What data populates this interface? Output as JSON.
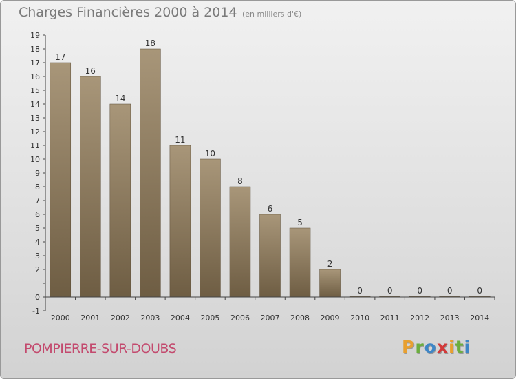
{
  "header": {
    "title": "Charges Financières 2000 à 2014",
    "subtitle": "(en milliers d'€)"
  },
  "footer": {
    "commune": "POMPIERRE-SUR-DOUBS",
    "logo_letters": [
      {
        "ch": "P",
        "color": "#e8a030"
      },
      {
        "ch": "r",
        "color": "#6cae3e"
      },
      {
        "ch": "o",
        "color": "#3e86c6"
      },
      {
        "ch": "x",
        "color": "#d23a3a"
      },
      {
        "ch": "i",
        "color": "#e8a030"
      },
      {
        "ch": "t",
        "color": "#6cae3e"
      },
      {
        "ch": "i",
        "color": "#3e86c6"
      }
    ]
  },
  "chart_data": {
    "type": "bar",
    "title": "Charges Financières 2000 à 2014",
    "subtitle": "(en milliers d'€)",
    "categories": [
      "2000",
      "2001",
      "2002",
      "2003",
      "2004",
      "2005",
      "2006",
      "2007",
      "2008",
      "2009",
      "2010",
      "2011",
      "2012",
      "2013",
      "2014"
    ],
    "values": [
      17,
      16,
      14,
      18,
      11,
      10,
      8,
      6,
      5,
      2,
      0,
      0,
      0,
      0,
      0
    ],
    "ylim": [
      -1,
      19
    ],
    "yticks": [
      "-1",
      "0",
      "",
      "2",
      "3",
      "4",
      "5",
      "6",
      "7",
      "8",
      "9",
      "10",
      "11",
      "12",
      "13",
      "14",
      "15",
      "16",
      "17",
      "18",
      "19"
    ],
    "xlabel": "",
    "ylabel": "",
    "grid": false,
    "bar_color": "#8c7a5e"
  }
}
